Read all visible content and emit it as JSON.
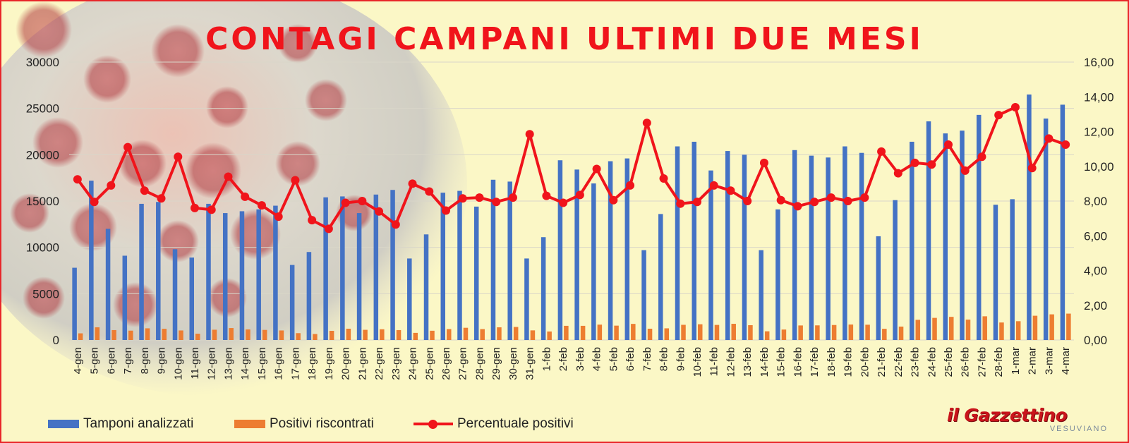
{
  "title": "CONTAGI CAMPANI ULTIMI DUE MESI",
  "logo": {
    "main": "il Gazzettino",
    "sub": "VESUVIANO"
  },
  "colors": {
    "tamponi": "#4472c4",
    "positivi": "#ed7d31",
    "percentuale": "#f0141b",
    "title": "#f0141b",
    "background": "#fbf7c6",
    "border": "#e8262a"
  },
  "legend": {
    "tamponi": "Tamponi analizzati",
    "positivi": "Positivi riscontrati",
    "percentuale": "Percentuale positivi"
  },
  "chart_data": {
    "type": "bar",
    "title": "CONTAGI CAMPANI ULTIMI DUE MESI",
    "xlabel": "",
    "ylabel": "",
    "ylim": [
      0,
      30000
    ],
    "y2lim": [
      0,
      16
    ],
    "yticks": [
      "0",
      "5000",
      "10000",
      "15000",
      "20000",
      "25000",
      "30000"
    ],
    "y2ticks": [
      "0,00",
      "2,00",
      "4,00",
      "6,00",
      "8,00",
      "10,00",
      "12,00",
      "14,00",
      "16,00"
    ],
    "grid": true,
    "legend_position": "bottom",
    "categories": [
      "4-gen",
      "5-gen",
      "6-gen",
      "7-gen",
      "8-gen",
      "9-gen",
      "10-gen",
      "11-gen",
      "12-gen",
      "13-gen",
      "14-gen",
      "15-gen",
      "16-gen",
      "17-gen",
      "18-gen",
      "19-gen",
      "20-gen",
      "21-gen",
      "22-gen",
      "23-gen",
      "24-gen",
      "25-gen",
      "26-gen",
      "27-gen",
      "28-gen",
      "29-gen",
      "30-gen",
      "31-gen",
      "1-feb",
      "2-feb",
      "3-feb",
      "4-feb",
      "5-feb",
      "6-feb",
      "7-feb",
      "8-feb",
      "9-feb",
      "10-feb",
      "11-feb",
      "12-feb",
      "13-feb",
      "14-feb",
      "15-feb",
      "16-feb",
      "17-feb",
      "18-feb",
      "19-feb",
      "20-feb",
      "21-feb",
      "22-feb",
      "23-feb",
      "24-feb",
      "25-feb",
      "26-feb",
      "27-feb",
      "28-feb",
      "1-mar",
      "2-mar",
      "3-mar",
      "4-mar"
    ],
    "series": [
      {
        "name": "Tamponi analizzati",
        "type": "bar",
        "axis": "left",
        "values": [
          7800,
          17200,
          12000,
          9100,
          14700,
          14900,
          9800,
          8900,
          14700,
          13700,
          13900,
          14100,
          14500,
          8100,
          9500,
          15400,
          15500,
          13700,
          15700,
          16200,
          8800,
          11400,
          15900,
          16100,
          14400,
          17300,
          17100,
          8800,
          11100,
          19400,
          18400,
          16900,
          19300,
          19600,
          9700,
          13600,
          20900,
          21400,
          18300,
          20400,
          20000,
          9700,
          14100,
          20500,
          19900,
          19700,
          20900,
          20200,
          11200,
          15100,
          21400,
          23600,
          22300,
          22600,
          24300,
          14600,
          15200,
          26500,
          23900,
          25400
        ]
      },
      {
        "name": "Positivi riscontrati",
        "type": "bar",
        "axis": "left",
        "values": [
          720,
          1370,
          1070,
          1010,
          1260,
          1210,
          1030,
          680,
          1110,
          1290,
          1140,
          1090,
          1030,
          740,
          650,
          990,
          1220,
          1100,
          1160,
          1070,
          770,
          1000,
          1180,
          1320,
          1180,
          1370,
          1410,
          1040,
          920,
          1530,
          1530,
          1660,
          1550,
          1740,
          1220,
          1260,
          1640,
          1700,
          1630,
          1750,
          1600,
          940,
          1130,
          1570,
          1580,
          1620,
          1670,
          1650,
          1210,
          1450,
          2180,
          2390,
          2500,
          2200,
          2560,
          1890,
          2030,
          2620,
          2770,
          2850
        ]
      },
      {
        "name": "Percentuale positivi",
        "type": "line",
        "axis": "right",
        "values": [
          9.25,
          7.95,
          8.9,
          11.1,
          8.6,
          8.15,
          10.55,
          7.6,
          7.5,
          9.4,
          8.25,
          7.75,
          7.1,
          9.2,
          6.9,
          6.4,
          7.9,
          8.0,
          7.4,
          6.65,
          9.0,
          8.55,
          7.45,
          8.15,
          8.2,
          7.95,
          8.2,
          11.85,
          8.3,
          7.9,
          8.35,
          9.85,
          8.05,
          8.9,
          12.5,
          9.3,
          7.85,
          7.95,
          8.9,
          8.6,
          8.0,
          10.2,
          8.05,
          7.7,
          7.95,
          8.2,
          8.0,
          8.2,
          10.85,
          9.6,
          10.2,
          10.1,
          11.25,
          9.75,
          10.55,
          12.95,
          13.4,
          9.9,
          11.6,
          11.25
        ]
      }
    ]
  }
}
